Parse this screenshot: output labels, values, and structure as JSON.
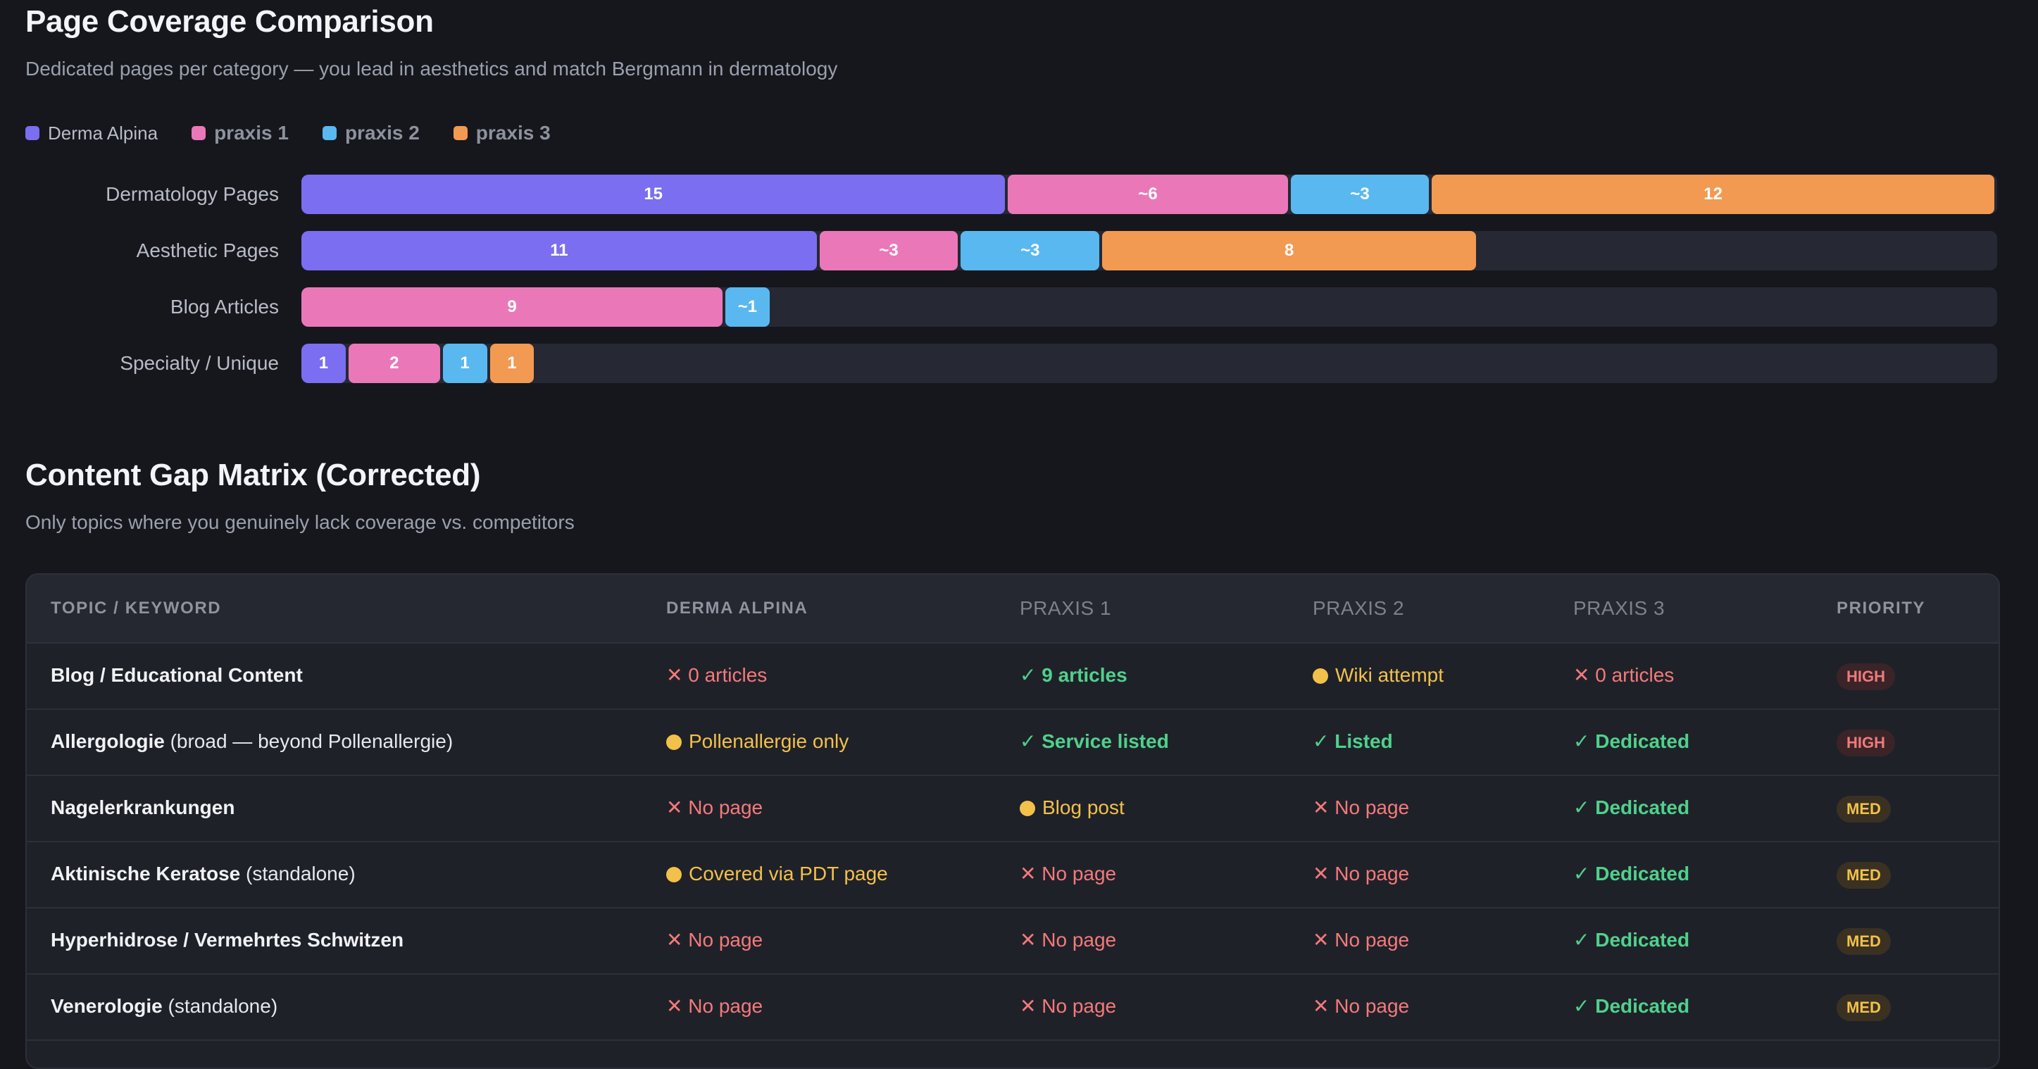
{
  "section1": {
    "title": "Page Coverage Comparison",
    "subtitle": "Dedicated pages per category — you lead in aesthetics and match Bergmann in dermatology"
  },
  "colors": {
    "derma_alpina": "#7b6ef0",
    "praxis1": "#ea78b8",
    "praxis2": "#5ab8f0",
    "praxis3": "#f29a52",
    "track": "#262833"
  },
  "chart_data": {
    "type": "bar",
    "orientation": "horizontal",
    "stacked": true,
    "legend_position": "top-left",
    "categories": [
      "Dermatology Pages",
      "Aesthetic Pages",
      "Blog Articles",
      "Specialty / Unique"
    ],
    "series": [
      {
        "name": "Derma Alpina",
        "color": "#7b6ef0",
        "values": [
          15,
          11,
          0,
          1
        ],
        "labels": [
          "15",
          "11",
          "",
          "1"
        ]
      },
      {
        "name": "praxis 1",
        "color": "#ea78b8",
        "values": [
          6,
          3,
          9,
          2
        ],
        "labels": [
          "~6",
          "~3",
          "9",
          "2"
        ]
      },
      {
        "name": "praxis 2",
        "color": "#5ab8f0",
        "values": [
          3,
          3,
          1,
          1
        ],
        "labels": [
          "~3",
          "~3",
          "~1",
          "1"
        ]
      },
      {
        "name": "praxis 3",
        "color": "#f29a52",
        "values": [
          12,
          8,
          0,
          1
        ],
        "labels": [
          "12",
          "8",
          "",
          "1"
        ]
      }
    ]
  },
  "section2": {
    "title": "Content Gap Matrix (Corrected)",
    "subtitle": "Only topics where you genuinely lack coverage vs. competitors"
  },
  "table": {
    "headers": [
      "TOPIC / KEYWORD",
      "DERMA ALPINA",
      "PRAXIS 1",
      "PRAXIS 2",
      "PRAXIS 3",
      "PRIORITY"
    ],
    "rows": [
      {
        "topic": "Blog / Educational Content",
        "note": "",
        "cells": [
          {
            "s": "bad",
            "t": "0 articles"
          },
          {
            "s": "good",
            "t": "9 articles"
          },
          {
            "s": "mid",
            "t": "Wiki attempt"
          },
          {
            "s": "bad",
            "t": "0 articles"
          }
        ],
        "priority": "HIGH",
        "priority_level": "high"
      },
      {
        "topic": "Allergologie",
        "note": " (broad — beyond Pollenallergie)",
        "cells": [
          {
            "s": "mid",
            "t": "Pollenallergie only"
          },
          {
            "s": "good",
            "t": "Service listed"
          },
          {
            "s": "good",
            "t": "Listed"
          },
          {
            "s": "good",
            "t": "Dedicated"
          }
        ],
        "priority": "HIGH",
        "priority_level": "high"
      },
      {
        "topic": "Nagelerkrankungen",
        "note": "",
        "cells": [
          {
            "s": "bad",
            "t": "No page"
          },
          {
            "s": "mid",
            "t": "Blog post"
          },
          {
            "s": "bad",
            "t": "No page"
          },
          {
            "s": "good",
            "t": "Dedicated"
          }
        ],
        "priority": "MED",
        "priority_level": "med"
      },
      {
        "topic": "Aktinische Keratose",
        "note": " (standalone)",
        "cells": [
          {
            "s": "mid",
            "t": "Covered via PDT page"
          },
          {
            "s": "bad",
            "t": "No page"
          },
          {
            "s": "bad",
            "t": "No page"
          },
          {
            "s": "good",
            "t": "Dedicated"
          }
        ],
        "priority": "MED",
        "priority_level": "med"
      },
      {
        "topic": "Hyperhidrose / Vermehrtes Schwitzen",
        "note": "",
        "cells": [
          {
            "s": "bad",
            "t": "No page"
          },
          {
            "s": "bad",
            "t": "No page"
          },
          {
            "s": "bad",
            "t": "No page"
          },
          {
            "s": "good",
            "t": "Dedicated"
          }
        ],
        "priority": "MED",
        "priority_level": "med"
      },
      {
        "topic": "Venerologie",
        "note": " (standalone)",
        "cells": [
          {
            "s": "bad",
            "t": "No page"
          },
          {
            "s": "bad",
            "t": "No page"
          },
          {
            "s": "bad",
            "t": "No page"
          },
          {
            "s": "good",
            "t": "Dedicated"
          }
        ],
        "priority": "MED",
        "priority_level": "med"
      }
    ]
  }
}
